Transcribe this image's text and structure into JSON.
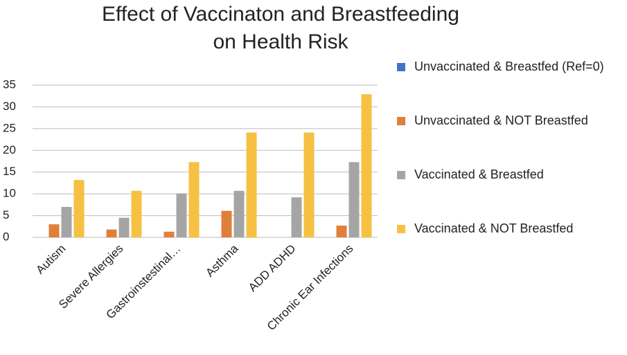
{
  "chart_data": {
    "type": "bar",
    "title": [
      "Effect of Vaccinaton and Breastfeeding",
      "on Health Risk"
    ],
    "categories": [
      "Autism",
      "Severe Allergies",
      "Gastroinstestinal…",
      "Asthma",
      "ADD ADHD",
      "Chronic Ear Infections"
    ],
    "series": [
      {
        "name": "Unvaccinated & Breastfed (Ref=0)",
        "color": "#4472c4",
        "values": [
          0,
          0,
          0,
          0,
          0,
          0
        ]
      },
      {
        "name": "Unvaccinated & NOT Breastfed",
        "color": "#e07f3a",
        "values": [
          3,
          1.8,
          1.3,
          6.1,
          0,
          2.7
        ]
      },
      {
        "name": "Vaccinated & Breastfed",
        "color": "#a5a5a5",
        "values": [
          7,
          4.5,
          10.1,
          10.7,
          9.2,
          17.3
        ]
      },
      {
        "name": "Vaccinated & NOT Breastfed",
        "color": "#f6c143",
        "values": [
          13.2,
          10.7,
          17.3,
          24.1,
          24.1,
          32.9
        ]
      }
    ],
    "ylim": [
      0,
      35
    ],
    "yticks": [
      0,
      5,
      10,
      15,
      20,
      25,
      30,
      35
    ],
    "grid": true,
    "legend": "right"
  }
}
